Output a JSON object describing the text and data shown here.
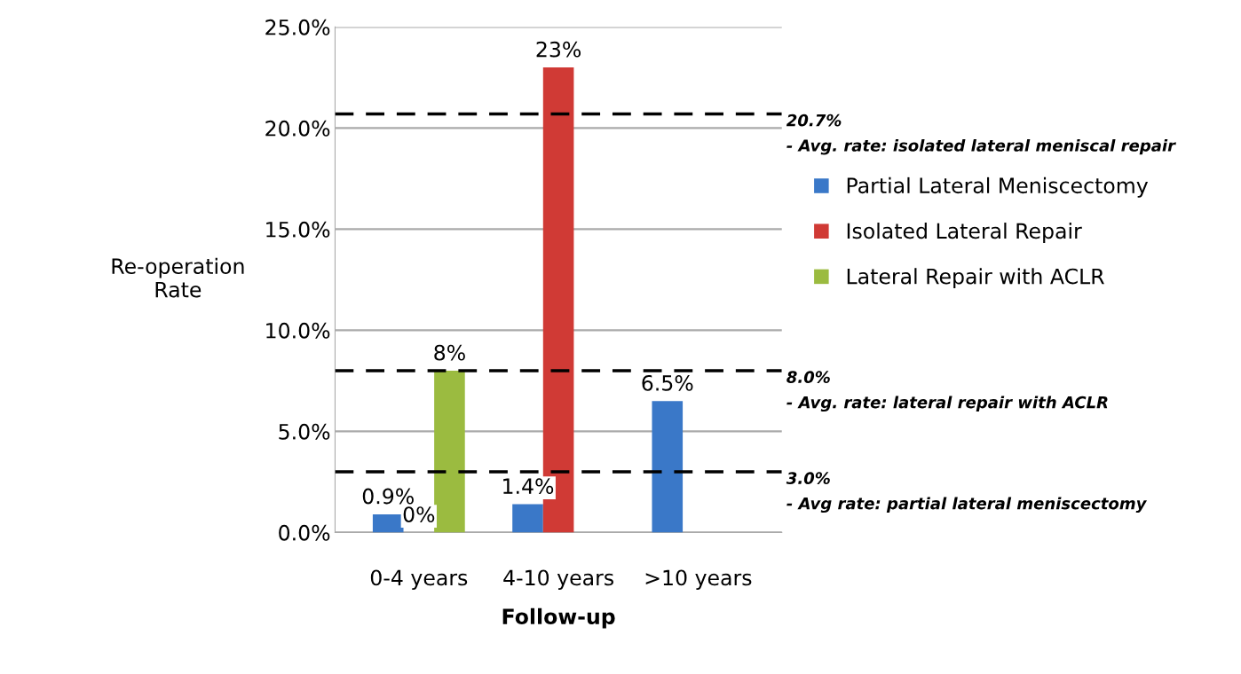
{
  "chart_data": {
    "type": "bar",
    "xlabel": "Follow-up",
    "ylabel": "Re-operation\nRate",
    "categories": [
      "0-4 years",
      "4-10 years",
      ">10 years"
    ],
    "series": [
      {
        "name": "Partial Lateral Meniscectomy",
        "color": "#3a78c8",
        "values": [
          0.9,
          1.4,
          6.5
        ],
        "value_labels": [
          "0.9%",
          "1.4%",
          "6.5%"
        ]
      },
      {
        "name": "Isolated Lateral Repair",
        "color": "#d03a35",
        "values": [
          0,
          23,
          null
        ],
        "value_labels": [
          "0%",
          "23%",
          null
        ]
      },
      {
        "name": "Lateral Repair with ACLR",
        "color": "#9bbb40",
        "values": [
          8,
          null,
          null
        ],
        "value_labels": [
          "8%",
          null,
          null
        ]
      }
    ],
    "ylim": [
      0,
      25
    ],
    "yticks": [
      {
        "value": 0,
        "label": "0.0%"
      },
      {
        "value": 5,
        "label": "5.0%"
      },
      {
        "value": 10,
        "label": "10.0%"
      },
      {
        "value": 15,
        "label": "15.0%"
      },
      {
        "value": 20,
        "label": "20.0%"
      },
      {
        "value": 25,
        "label": "25.0%"
      }
    ],
    "grid": "y",
    "legend": "right",
    "ref_lines": [
      {
        "axis": "y",
        "value": 20.7,
        "label": "20.7%\n- Avg. rate: isolated lateral meniscal repair",
        "color": "#000000",
        "line_style": "dashed"
      },
      {
        "axis": "y",
        "value": 8.0,
        "label": "8.0%\n- Avg. rate: lateral repair with ACLR",
        "color": "#000000",
        "line_style": "dashed"
      },
      {
        "axis": "y",
        "value": 3.0,
        "label": "3.0%\n- Avg rate: partial lateral meniscectomy",
        "color": "#000000",
        "line_style": "dashed"
      }
    ]
  }
}
